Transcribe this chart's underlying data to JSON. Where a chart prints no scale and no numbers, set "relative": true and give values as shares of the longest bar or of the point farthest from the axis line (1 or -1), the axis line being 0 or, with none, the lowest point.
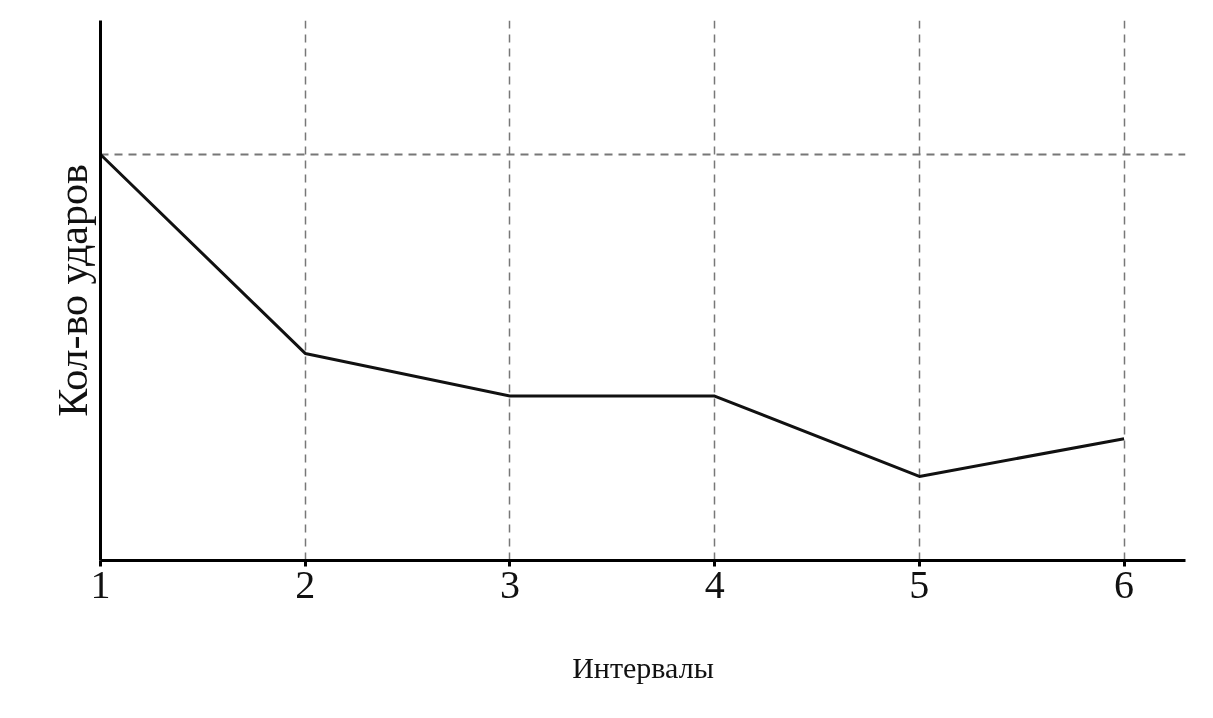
{
  "chart_data": {
    "type": "line",
    "xlabel": "Интервалы",
    "ylabel": "Кол-во ударов",
    "relative": true,
    "x": [
      1,
      2,
      3,
      4,
      5,
      6
    ],
    "series": [
      {
        "color": "#111111",
        "values": [
          1,
          0.51,
          0.405,
          0.405,
          0.207,
          0.3
        ]
      }
    ],
    "xlim": [
      1,
      6.3
    ],
    "xticks": [
      1,
      2,
      3,
      4,
      5,
      6
    ],
    "grid": "x",
    "marker": "none",
    "line_style": "solid",
    "ref_lines": [
      {
        "axis": "y",
        "value": 1,
        "label": null,
        "color": "#777777",
        "line_style": "dashed"
      }
    ]
  }
}
